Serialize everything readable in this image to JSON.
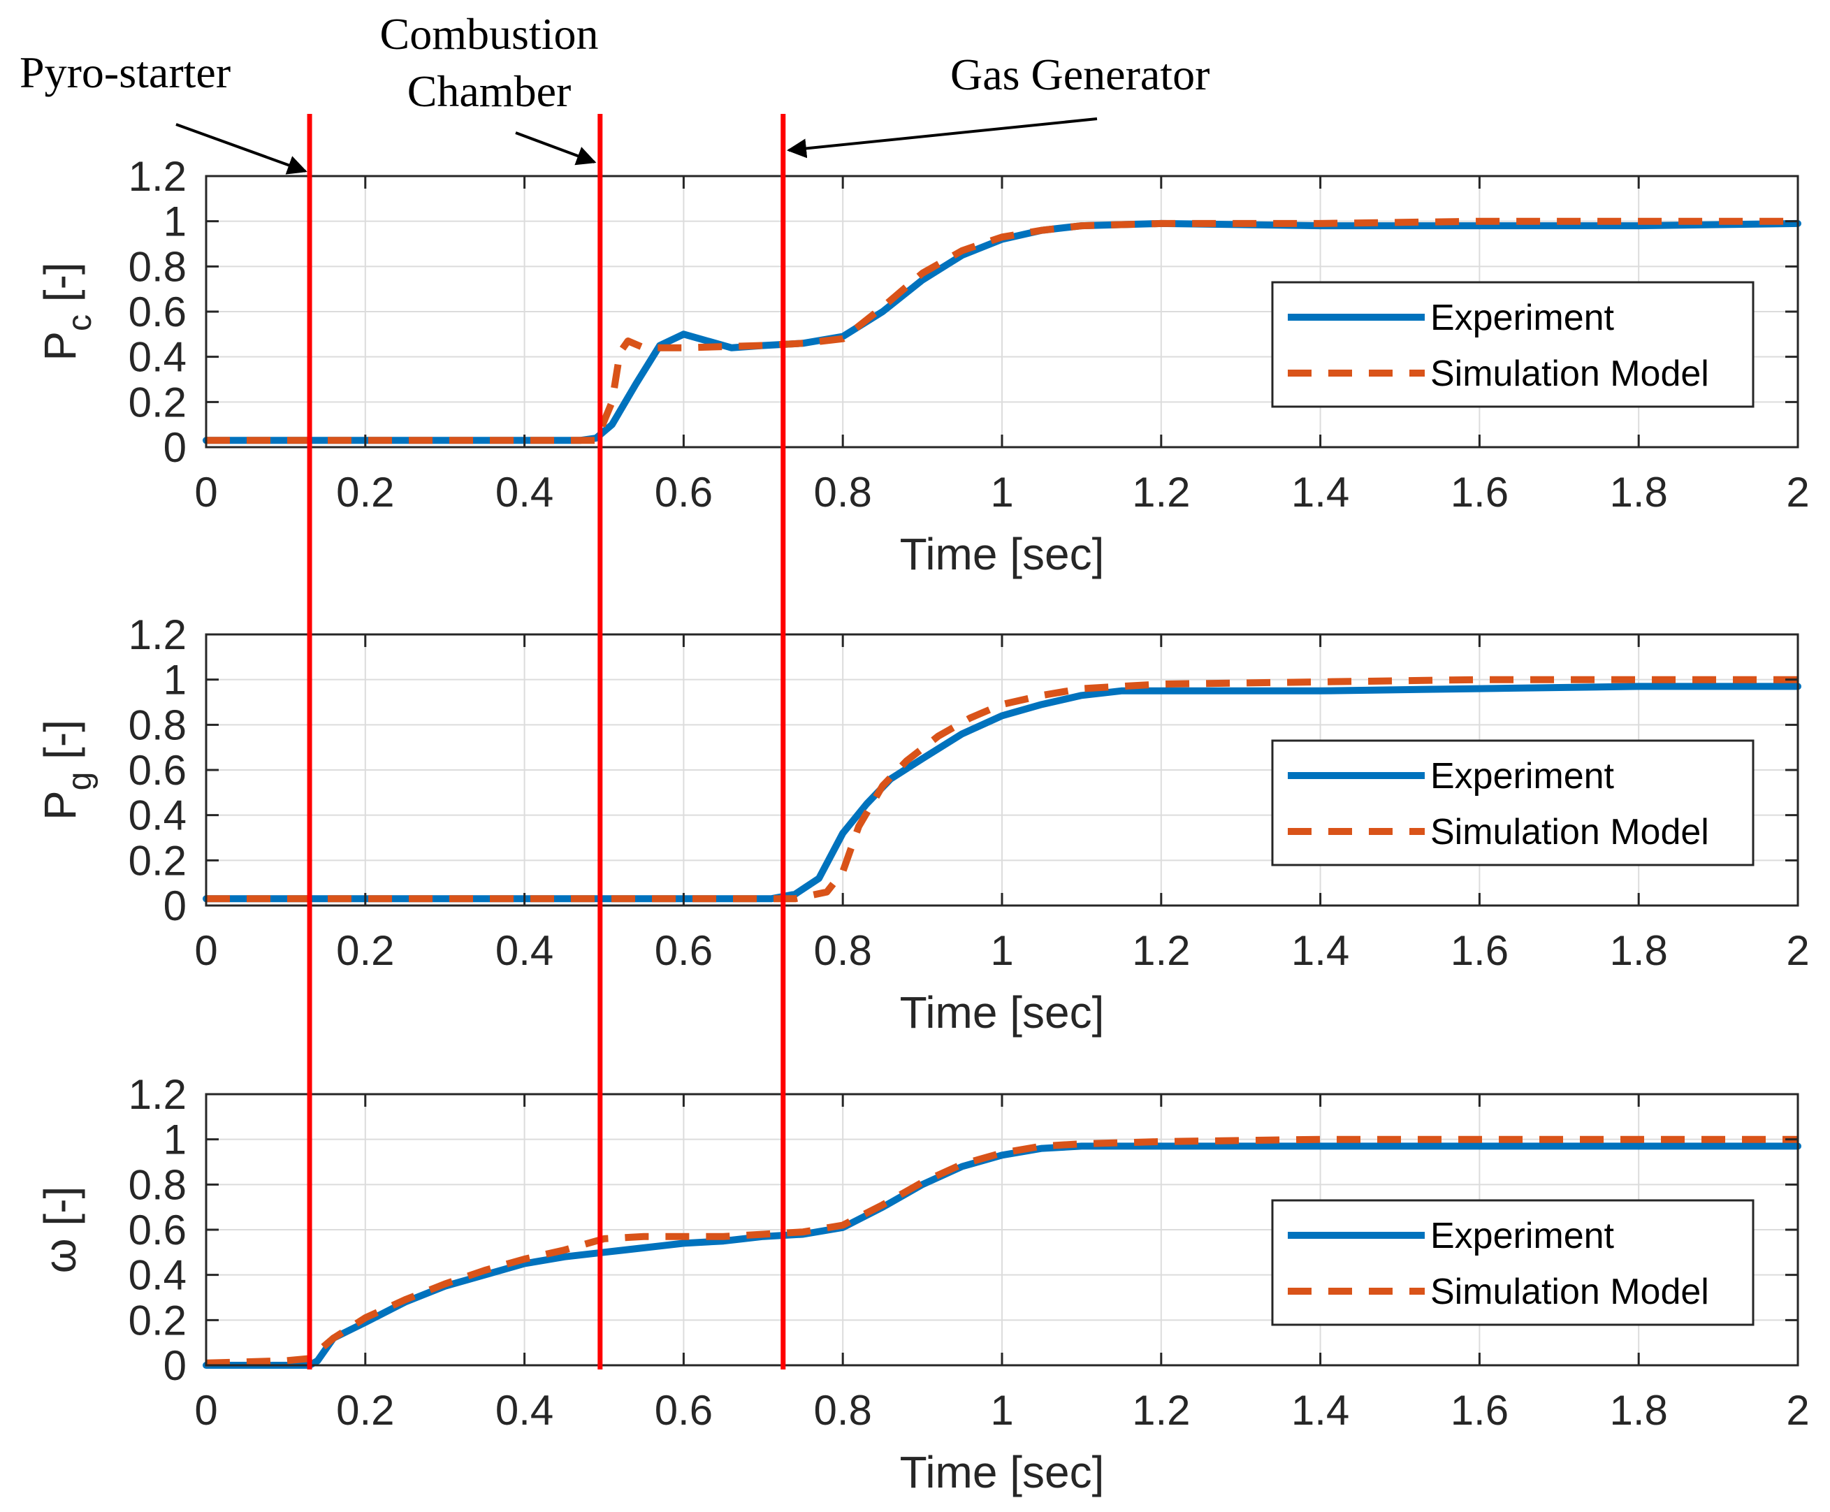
{
  "chart_data": [
    {
      "type": "line",
      "title": "",
      "xlabel": "Time [sec]",
      "ylabel_main": "P",
      "ylabel_sub": "c",
      "ylabel_unit": " [-]",
      "xlim": [
        0,
        2
      ],
      "ylim": [
        0,
        1.2
      ],
      "grid": true,
      "legend": "right",
      "x_ticks": [
        "0",
        "0.2",
        "0.4",
        "0.6",
        "0.8",
        "1",
        "1.2",
        "1.4",
        "1.6",
        "1.8",
        "2"
      ],
      "y_ticks": [
        "0",
        "0.2",
        "0.4",
        "0.6",
        "0.8",
        "1",
        "1.2"
      ],
      "series": [
        {
          "name": "Experiment",
          "color": "#0072BD",
          "style": "solid",
          "points": [
            [
              0,
              0.03
            ],
            [
              0.47,
              0.03
            ],
            [
              0.49,
              0.04
            ],
            [
              0.51,
              0.1
            ],
            [
              0.54,
              0.28
            ],
            [
              0.57,
              0.45
            ],
            [
              0.6,
              0.5
            ],
            [
              0.63,
              0.47
            ],
            [
              0.66,
              0.44
            ],
            [
              0.7,
              0.45
            ],
            [
              0.75,
              0.46
            ],
            [
              0.8,
              0.49
            ],
            [
              0.85,
              0.6
            ],
            [
              0.9,
              0.74
            ],
            [
              0.95,
              0.85
            ],
            [
              1.0,
              0.92
            ],
            [
              1.05,
              0.96
            ],
            [
              1.1,
              0.98
            ],
            [
              1.2,
              0.99
            ],
            [
              1.4,
              0.98
            ],
            [
              1.6,
              0.98
            ],
            [
              1.8,
              0.98
            ],
            [
              2.0,
              0.99
            ]
          ]
        },
        {
          "name": "Simulation Model",
          "color": "#D95319",
          "style": "dashed",
          "points": [
            [
              0,
              0.03
            ],
            [
              0.49,
              0.03
            ],
            [
              0.51,
              0.2
            ],
            [
              0.52,
              0.42
            ],
            [
              0.53,
              0.47
            ],
            [
              0.55,
              0.44
            ],
            [
              0.6,
              0.44
            ],
            [
              0.7,
              0.45
            ],
            [
              0.75,
              0.46
            ],
            [
              0.8,
              0.48
            ],
            [
              0.85,
              0.62
            ],
            [
              0.9,
              0.77
            ],
            [
              0.95,
              0.87
            ],
            [
              1.0,
              0.93
            ],
            [
              1.05,
              0.96
            ],
            [
              1.1,
              0.98
            ],
            [
              1.2,
              0.99
            ],
            [
              1.4,
              0.99
            ],
            [
              1.6,
              1.0
            ],
            [
              1.8,
              1.0
            ],
            [
              2.0,
              1.0
            ]
          ]
        }
      ]
    },
    {
      "type": "line",
      "title": "",
      "xlabel": "Time [sec]",
      "ylabel_main": "P",
      "ylabel_sub": "g",
      "ylabel_unit": " [-]",
      "xlim": [
        0,
        2
      ],
      "ylim": [
        0,
        1.2
      ],
      "grid": true,
      "legend": "right",
      "x_ticks": [
        "0",
        "0.2",
        "0.4",
        "0.6",
        "0.8",
        "1",
        "1.2",
        "1.4",
        "1.6",
        "1.8",
        "2"
      ],
      "y_ticks": [
        "0",
        "0.2",
        "0.4",
        "0.6",
        "0.8",
        "1",
        "1.2"
      ],
      "series": [
        {
          "name": "Experiment",
          "color": "#0072BD",
          "style": "solid",
          "points": [
            [
              0,
              0.03
            ],
            [
              0.71,
              0.03
            ],
            [
              0.74,
              0.05
            ],
            [
              0.77,
              0.12
            ],
            [
              0.8,
              0.32
            ],
            [
              0.83,
              0.45
            ],
            [
              0.86,
              0.56
            ],
            [
              0.9,
              0.65
            ],
            [
              0.95,
              0.76
            ],
            [
              1.0,
              0.84
            ],
            [
              1.05,
              0.89
            ],
            [
              1.1,
              0.93
            ],
            [
              1.15,
              0.95
            ],
            [
              1.2,
              0.95
            ],
            [
              1.4,
              0.95
            ],
            [
              1.6,
              0.96
            ],
            [
              1.8,
              0.97
            ],
            [
              2.0,
              0.97
            ]
          ]
        },
        {
          "name": "Simulation Model",
          "color": "#D95319",
          "style": "dashed",
          "points": [
            [
              0,
              0.03
            ],
            [
              0.74,
              0.03
            ],
            [
              0.78,
              0.06
            ],
            [
              0.8,
              0.15
            ],
            [
              0.82,
              0.35
            ],
            [
              0.85,
              0.53
            ],
            [
              0.88,
              0.64
            ],
            [
              0.92,
              0.75
            ],
            [
              0.96,
              0.83
            ],
            [
              1.0,
              0.89
            ],
            [
              1.05,
              0.93
            ],
            [
              1.1,
              0.96
            ],
            [
              1.2,
              0.98
            ],
            [
              1.4,
              0.99
            ],
            [
              1.6,
              1.0
            ],
            [
              1.8,
              1.0
            ],
            [
              2.0,
              1.0
            ]
          ]
        }
      ]
    },
    {
      "type": "line",
      "title": "",
      "xlabel": "Time [sec]",
      "ylabel_main": "ω",
      "ylabel_sub": "",
      "ylabel_unit": " [-]",
      "xlim": [
        0,
        2
      ],
      "ylim": [
        0,
        1.2
      ],
      "grid": true,
      "legend": "right",
      "x_ticks": [
        "0",
        "0.2",
        "0.4",
        "0.6",
        "0.8",
        "1",
        "1.2",
        "1.4",
        "1.6",
        "1.8",
        "2"
      ],
      "y_ticks": [
        "0",
        "0.2",
        "0.4",
        "0.6",
        "0.8",
        "1",
        "1.2"
      ],
      "series": [
        {
          "name": "Experiment",
          "color": "#0072BD",
          "style": "solid",
          "points": [
            [
              0,
              0.0
            ],
            [
              0.13,
              0.0
            ],
            [
              0.14,
              0.02
            ],
            [
              0.16,
              0.12
            ],
            [
              0.2,
              0.19
            ],
            [
              0.25,
              0.28
            ],
            [
              0.3,
              0.35
            ],
            [
              0.35,
              0.4
            ],
            [
              0.4,
              0.45
            ],
            [
              0.45,
              0.48
            ],
            [
              0.5,
              0.5
            ],
            [
              0.55,
              0.52
            ],
            [
              0.6,
              0.54
            ],
            [
              0.65,
              0.55
            ],
            [
              0.7,
              0.57
            ],
            [
              0.75,
              0.58
            ],
            [
              0.8,
              0.61
            ],
            [
              0.85,
              0.7
            ],
            [
              0.9,
              0.8
            ],
            [
              0.95,
              0.88
            ],
            [
              1.0,
              0.93
            ],
            [
              1.05,
              0.96
            ],
            [
              1.1,
              0.97
            ],
            [
              1.2,
              0.97
            ],
            [
              1.4,
              0.97
            ],
            [
              1.6,
              0.97
            ],
            [
              1.8,
              0.97
            ],
            [
              2.0,
              0.97
            ]
          ]
        },
        {
          "name": "Simulation Model",
          "color": "#D95319",
          "style": "dashed",
          "points": [
            [
              0,
              0.01
            ],
            [
              0.1,
              0.02
            ],
            [
              0.13,
              0.03
            ],
            [
              0.16,
              0.12
            ],
            [
              0.2,
              0.21
            ],
            [
              0.25,
              0.29
            ],
            [
              0.3,
              0.36
            ],
            [
              0.35,
              0.42
            ],
            [
              0.4,
              0.47
            ],
            [
              0.45,
              0.51
            ],
            [
              0.5,
              0.56
            ],
            [
              0.55,
              0.57
            ],
            [
              0.6,
              0.57
            ],
            [
              0.65,
              0.57
            ],
            [
              0.7,
              0.58
            ],
            [
              0.75,
              0.59
            ],
            [
              0.8,
              0.62
            ],
            [
              0.85,
              0.71
            ],
            [
              0.9,
              0.81
            ],
            [
              0.95,
              0.89
            ],
            [
              1.0,
              0.94
            ],
            [
              1.05,
              0.97
            ],
            [
              1.1,
              0.98
            ],
            [
              1.2,
              0.99
            ],
            [
              1.4,
              1.0
            ],
            [
              1.6,
              1.0
            ],
            [
              1.8,
              1.0
            ],
            [
              2.0,
              1.0
            ]
          ]
        }
      ]
    }
  ],
  "annotations": {
    "event_line_color": "#FF0000",
    "events": [
      {
        "label_lines": [
          "Pyro-starter"
        ],
        "time": 0.13
      },
      {
        "label_lines": [
          "Combustion",
          "Chamber"
        ],
        "time": 0.495
      },
      {
        "label_lines": [
          "Gas Generator"
        ],
        "time": 0.725
      }
    ]
  }
}
